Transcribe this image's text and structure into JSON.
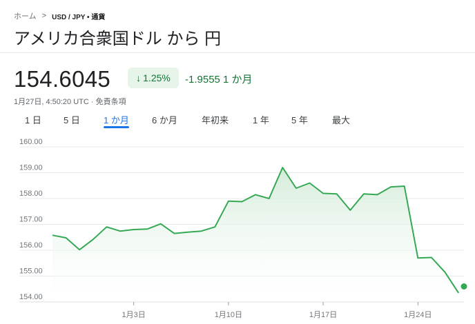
{
  "breadcrumb": {
    "home": "ホーム",
    "separator": ">",
    "current": "USD / JPY • 通貨"
  },
  "title": "アメリカ合衆国ドル から 円",
  "quote": {
    "price": "154.6045",
    "badge_arrow": "↓",
    "badge_percent": "1.25%",
    "change": "-1.9555 1 か月",
    "meta": "1月27日, 4:50:20 UTC · 免責条項"
  },
  "tabs": [
    {
      "label": "1 日",
      "active": false
    },
    {
      "label": "5 日",
      "active": false
    },
    {
      "label": "1 か月",
      "active": true
    },
    {
      "label": "6 か月",
      "active": false
    },
    {
      "label": "年初来",
      "active": false
    },
    {
      "label": "1 年",
      "active": false
    },
    {
      "label": "5 年",
      "active": false
    },
    {
      "label": "最大",
      "active": false
    }
  ],
  "colors": {
    "line": "#34a853",
    "fill_top": "#cfe9d5",
    "positive": "#137333",
    "accent": "#1a73e8"
  },
  "chart_data": {
    "type": "area",
    "y_ticks": [
      "160.00",
      "159.00",
      "158.00",
      "157.00",
      "156.00",
      "155.00",
      "154.00"
    ],
    "x_ticks": [
      "1月3日",
      "1月10日",
      "1月17日",
      "1月24日"
    ],
    "x_tick_positions": [
      3,
      10,
      17,
      24
    ],
    "ylim": [
      154,
      160
    ],
    "xlim": [
      -3,
      27.4
    ],
    "grid": true,
    "series": [
      {
        "x": [
          -3,
          -2,
          -1,
          0,
          1,
          2,
          3,
          4,
          5,
          6,
          7,
          8,
          9,
          10,
          11,
          12,
          13,
          14,
          15,
          16,
          17,
          18,
          19,
          20,
          21,
          22,
          23,
          24,
          25,
          26,
          27
        ],
        "values": [
          156.58,
          156.48,
          156.02,
          156.42,
          156.9,
          156.74,
          156.8,
          156.82,
          157.02,
          156.65,
          156.7,
          156.74,
          156.9,
          157.9,
          157.88,
          158.15,
          158.0,
          159.2,
          158.4,
          158.6,
          158.2,
          158.18,
          157.55,
          158.18,
          158.15,
          158.45,
          158.48,
          155.7,
          155.72,
          155.15,
          154.35
        ]
      }
    ],
    "last_point": {
      "x": 27.4,
      "y": 154.6
    }
  }
}
